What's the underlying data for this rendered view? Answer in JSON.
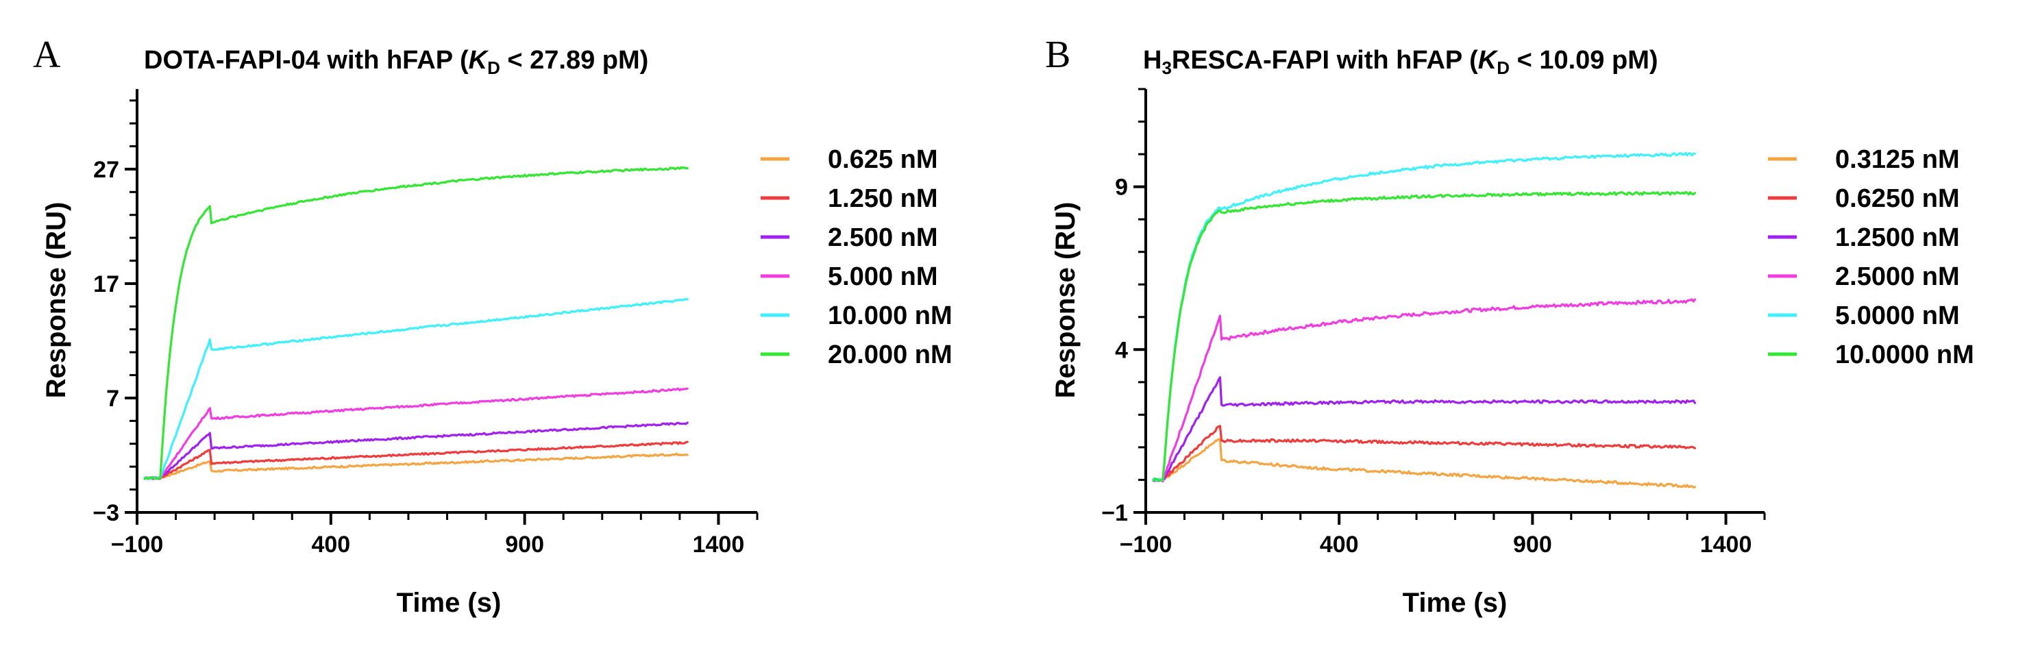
{
  "chart_data": [
    {
      "panel": "A",
      "type": "line",
      "title_main": "DOTA-FAPI-04 with hFAP (",
      "title_k": "K",
      "title_sub": "D",
      "title_rest": " < 27.89 pM)",
      "xlabel": "Time (s)",
      "ylabel": "Response (RU)",
      "xlim": [
        -100,
        1500
      ],
      "ylim": [
        -3,
        34
      ],
      "xticks": [
        -100,
        400,
        900,
        1400
      ],
      "yticks": [
        -3,
        7,
        17,
        27
      ],
      "xtick_labels": [
        "−100",
        "400",
        "900",
        "1400"
      ],
      "ytick_labels": [
        "−3",
        "7",
        "17",
        "27"
      ],
      "legend": "right",
      "series": [
        {
          "name": "0.625 nM",
          "color": "#f5a442",
          "pre": 0,
          "peak": 1.5,
          "plateau": 0.6,
          "end": 2.1,
          "shape": "lin",
          "noise": 0.08
        },
        {
          "name": "1.250 nM",
          "color": "#ef3b3b",
          "pre": 0,
          "peak": 2.5,
          "plateau": 1.3,
          "end": 3.1,
          "shape": "lin",
          "noise": 0.08
        },
        {
          "name": "2.500 nM",
          "color": "#a020f0",
          "pre": 0,
          "peak": 4.0,
          "plateau": 2.6,
          "end": 4.8,
          "shape": "lin",
          "noise": 0.08
        },
        {
          "name": "5.000 nM",
          "color": "#f03ce0",
          "pre": 0,
          "peak": 6.2,
          "plateau": 5.2,
          "end": 7.8,
          "shape": "lin",
          "noise": 0.08
        },
        {
          "name": "10.000 nM",
          "color": "#3ff0ff",
          "pre": 0,
          "peak": 12.3,
          "plateau": 11.2,
          "end": 15.6,
          "shape": "lin",
          "noise": 0.08
        },
        {
          "name": "20.000 nM",
          "color": "#32e632",
          "pre": 0,
          "peak": 23.8,
          "plateau": 22.3,
          "end": 27.1,
          "shape": "sat",
          "noise": 0.08
        }
      ]
    },
    {
      "panel": "B",
      "type": "line",
      "title_main": "H",
      "title_sub1": "3",
      "title_main2": "RESCA-FAPI with hFAP (",
      "title_k": "K",
      "title_sub": "D",
      "title_rest": " < 10.09 pM)",
      "xlabel": "Time (s)",
      "ylabel": "Response (RU)",
      "xlim": [
        -100,
        1500
      ],
      "ylim": [
        -1,
        12
      ],
      "xticks": [
        -100,
        400,
        900,
        1400
      ],
      "yticks": [
        -1,
        4,
        9
      ],
      "xtick_labels": [
        "−100",
        "400",
        "900",
        "1400"
      ],
      "ytick_labels": [
        "−1",
        "4",
        "9"
      ],
      "legend": "right",
      "series": [
        {
          "name": "0.3125 nM",
          "color": "#f5a442",
          "pre": 0,
          "peak": 1.3,
          "plateau": 0.6,
          "end": -0.2,
          "shape": "decay",
          "noise": 0.04
        },
        {
          "name": "0.6250 nM",
          "color": "#ef3b3b",
          "pre": 0,
          "peak": 1.7,
          "plateau": 1.2,
          "end": 1.0,
          "shape": "decay2",
          "noise": 0.04
        },
        {
          "name": "1.2500 nM",
          "color": "#a020f0",
          "pre": 0,
          "peak": 3.2,
          "plateau": 2.3,
          "end": 2.4,
          "shape": "flat",
          "noise": 0.04
        },
        {
          "name": "2.5000 nM",
          "color": "#f03ce0",
          "pre": 0,
          "peak": 5.1,
          "plateau": 4.3,
          "end": 5.5,
          "shape": "sat2",
          "noise": 0.05
        },
        {
          "name": "5.0000 nM",
          "color": "#3ff0ff",
          "pre": 0,
          "peak": 8.4,
          "plateau": 8.3,
          "end": 10.0,
          "shape": "sat3",
          "noise": 0.04
        },
        {
          "name": "10.0000 nM",
          "color": "#32e632",
          "pre": 0,
          "peak": 8.3,
          "plateau": 8.2,
          "end": 8.8,
          "shape": "sat4",
          "noise": 0.04
        }
      ]
    }
  ]
}
